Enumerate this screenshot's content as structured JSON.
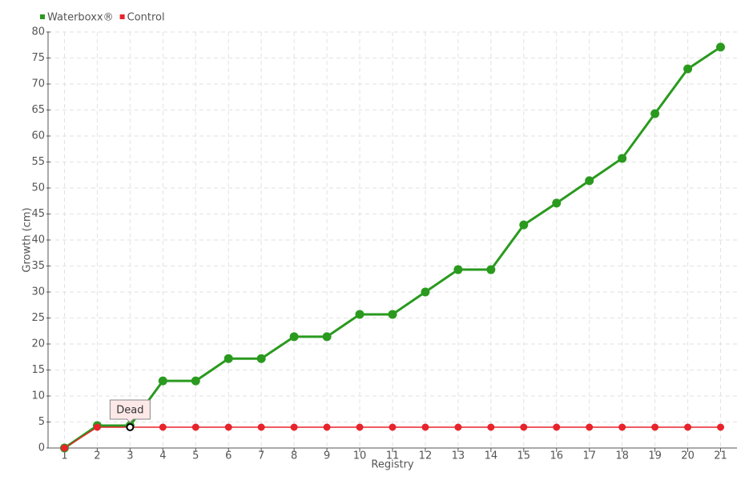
{
  "chart_data": {
    "type": "line",
    "x_label": "Registry",
    "y_label": "Growth (cm)",
    "categories": [
      "1",
      "2",
      "3",
      "4",
      "5",
      "6",
      "7",
      "8",
      "9",
      "10",
      "11",
      "12",
      "13",
      "14",
      "15",
      "16",
      "17",
      "18",
      "19",
      "20",
      "21"
    ],
    "series": [
      {
        "name": "Waterboxx®",
        "color": "#2a9a1f",
        "values": [
          0,
          4.3,
          4.3,
          12.9,
          12.9,
          17.2,
          17.2,
          21.4,
          21.4,
          25.7,
          25.7,
          30,
          34.3,
          34.3,
          42.9,
          47.1,
          51.4,
          55.7,
          64.3,
          72.9,
          77.1
        ]
      },
      {
        "name": "Control",
        "color": "#e8232b",
        "values": [
          0,
          4,
          4,
          4,
          4,
          4,
          4,
          4,
          4,
          4,
          4,
          4,
          4,
          4,
          4,
          4,
          4,
          4,
          4,
          4,
          4
        ]
      }
    ],
    "annotation": "Dead",
    "ylim": [
      0,
      80
    ],
    "yticks": [
      0,
      5,
      10,
      15,
      20,
      25,
      30,
      35,
      40,
      45,
      50,
      55,
      60,
      65,
      70,
      75,
      80
    ],
    "grid": true,
    "legend": "top-left"
  }
}
